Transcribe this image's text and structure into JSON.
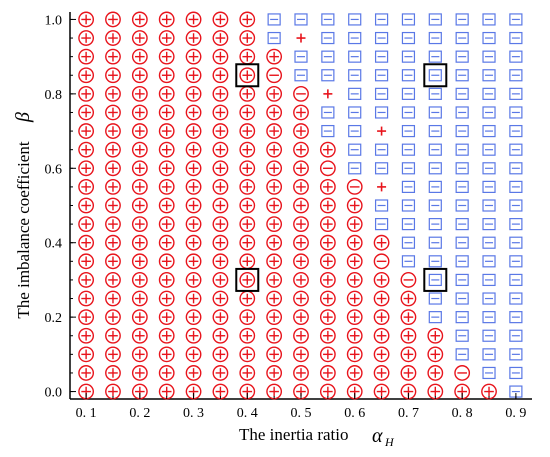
{
  "colors": {
    "circle": "#e8141c",
    "square": "#5a78e6",
    "highlight": "#000000"
  },
  "chart_data": {
    "type": "scatter",
    "xlabel": "The inertia ratio",
    "xsymbol": "α",
    "xsymbol_sub": "H",
    "ylabel": "The imbalance coefficient",
    "ysymbol": "β",
    "xlim": [
      0.07,
      0.93
    ],
    "ylim": [
      -0.02,
      1.02
    ],
    "xticks": [
      0.1,
      0.2,
      0.3,
      0.4,
      0.5,
      0.6,
      0.7,
      0.8,
      0.9
    ],
    "xtick_labels": [
      "0. 1",
      "0. 2",
      "0. 3",
      "0. 4",
      "0. 5",
      "0. 6",
      "0. 7",
      "0. 8",
      "0. 9"
    ],
    "yticks": [
      0.0,
      0.2,
      0.4,
      0.6,
      0.8,
      1.0
    ],
    "ytick_labels": [
      "0.0",
      "0.2",
      "0.4",
      "0.6",
      "0.8",
      "1.0"
    ],
    "x": [
      0.1,
      0.15,
      0.2,
      0.25,
      0.3,
      0.35,
      0.4,
      0.45,
      0.5,
      0.55,
      0.6,
      0.65,
      0.7,
      0.75,
      0.8,
      0.85,
      0.9
    ],
    "y_step": 0.05,
    "legend_codes": {
      "C+": "circle with plus",
      "C-": "circle with minus",
      "S-": "square with minus",
      "P": "plus only",
      "E": "empty"
    },
    "grid_rows_top_to_bottom": [
      [
        "C+",
        "C+",
        "C+",
        "C+",
        "C+",
        "C+",
        "C+",
        "S-",
        "S-",
        "S-",
        "S-",
        "S-",
        "S-",
        "S-",
        "S-",
        "S-",
        "S-"
      ],
      [
        "C+",
        "C+",
        "C+",
        "C+",
        "C+",
        "C+",
        "C+",
        "S-",
        "P",
        "S-",
        "S-",
        "S-",
        "S-",
        "S-",
        "S-",
        "S-",
        "S-"
      ],
      [
        "C+",
        "C+",
        "C+",
        "C+",
        "C+",
        "C+",
        "C+",
        "C+",
        "S-",
        "S-",
        "S-",
        "S-",
        "S-",
        "S-",
        "S-",
        "S-",
        "S-"
      ],
      [
        "C+",
        "C+",
        "C+",
        "C+",
        "C+",
        "C+",
        "C+",
        "C-",
        "S-",
        "S-",
        "S-",
        "S-",
        "S-",
        "S-",
        "S-",
        "S-",
        "S-"
      ],
      [
        "C+",
        "C+",
        "C+",
        "C+",
        "C+",
        "C+",
        "C+",
        "C+",
        "C-",
        "P",
        "S-",
        "S-",
        "S-",
        "S-",
        "S-",
        "S-",
        "S-"
      ],
      [
        "C+",
        "C+",
        "C+",
        "C+",
        "C+",
        "C+",
        "C+",
        "C+",
        "C+",
        "S-",
        "S-",
        "S-",
        "S-",
        "S-",
        "S-",
        "S-",
        "S-"
      ],
      [
        "C+",
        "C+",
        "C+",
        "C+",
        "C+",
        "C+",
        "C+",
        "C+",
        "C+",
        "S-",
        "S-",
        "P",
        "S-",
        "S-",
        "S-",
        "S-",
        "S-"
      ],
      [
        "C+",
        "C+",
        "C+",
        "C+",
        "C+",
        "C+",
        "C+",
        "C+",
        "C+",
        "C+",
        "S-",
        "S-",
        "S-",
        "S-",
        "S-",
        "S-",
        "S-"
      ],
      [
        "C+",
        "C+",
        "C+",
        "C+",
        "C+",
        "C+",
        "C+",
        "C+",
        "C+",
        "C-",
        "S-",
        "S-",
        "S-",
        "S-",
        "S-",
        "S-",
        "S-"
      ],
      [
        "C+",
        "C+",
        "C+",
        "C+",
        "C+",
        "C+",
        "C+",
        "C+",
        "C+",
        "C+",
        "C-",
        "P",
        "S-",
        "S-",
        "S-",
        "S-",
        "S-"
      ],
      [
        "C+",
        "C+",
        "C+",
        "C+",
        "C+",
        "C+",
        "C+",
        "C+",
        "C+",
        "C+",
        "C+",
        "S-",
        "S-",
        "S-",
        "S-",
        "S-",
        "S-"
      ],
      [
        "C+",
        "C+",
        "C+",
        "C+",
        "C+",
        "C+",
        "C+",
        "C+",
        "C+",
        "C+",
        "C+",
        "S-",
        "S-",
        "S-",
        "S-",
        "S-",
        "S-"
      ],
      [
        "C+",
        "C+",
        "C+",
        "C+",
        "C+",
        "C+",
        "C+",
        "C+",
        "C+",
        "C+",
        "C+",
        "C+",
        "S-",
        "S-",
        "S-",
        "S-",
        "S-"
      ],
      [
        "C+",
        "C+",
        "C+",
        "C+",
        "C+",
        "C+",
        "C+",
        "C+",
        "C+",
        "C+",
        "C+",
        "C-",
        "S-",
        "S-",
        "S-",
        "S-",
        "S-"
      ],
      [
        "C+",
        "C+",
        "C+",
        "C+",
        "C+",
        "C+",
        "C+",
        "C+",
        "C+",
        "C+",
        "C+",
        "C+",
        "C-",
        "S-",
        "S-",
        "S-",
        "S-"
      ],
      [
        "C+",
        "C+",
        "C+",
        "C+",
        "C+",
        "C+",
        "C+",
        "C+",
        "C+",
        "C+",
        "C+",
        "C+",
        "C+",
        "S-",
        "S-",
        "S-",
        "S-"
      ],
      [
        "C+",
        "C+",
        "C+",
        "C+",
        "C+",
        "C+",
        "C+",
        "C+",
        "C+",
        "C+",
        "C+",
        "C+",
        "C+",
        "S-",
        "S-",
        "S-",
        "S-"
      ],
      [
        "C+",
        "C+",
        "C+",
        "C+",
        "C+",
        "C+",
        "C+",
        "C+",
        "C+",
        "C+",
        "C+",
        "C+",
        "C+",
        "C+",
        "S-",
        "S-",
        "S-"
      ],
      [
        "C+",
        "C+",
        "C+",
        "C+",
        "C+",
        "C+",
        "C+",
        "C+",
        "C+",
        "C+",
        "C+",
        "C+",
        "C+",
        "C+",
        "S-",
        "S-",
        "S-"
      ],
      [
        "C+",
        "C+",
        "C+",
        "C+",
        "C+",
        "C+",
        "C+",
        "C+",
        "C+",
        "C+",
        "C+",
        "C+",
        "C+",
        "C+",
        "C-",
        "S-",
        "S-"
      ],
      [
        "C+",
        "C+",
        "C+",
        "C+",
        "C+",
        "C+",
        "C+",
        "C+",
        "C+",
        "C+",
        "C+",
        "C+",
        "C+",
        "C+",
        "C+",
        "C+",
        "S-"
      ]
    ],
    "highlight_boxes": [
      {
        "x": 0.4,
        "y": 0.85
      },
      {
        "x": 0.75,
        "y": 0.85
      },
      {
        "x": 0.4,
        "y": 0.3
      },
      {
        "x": 0.75,
        "y": 0.3
      }
    ]
  }
}
